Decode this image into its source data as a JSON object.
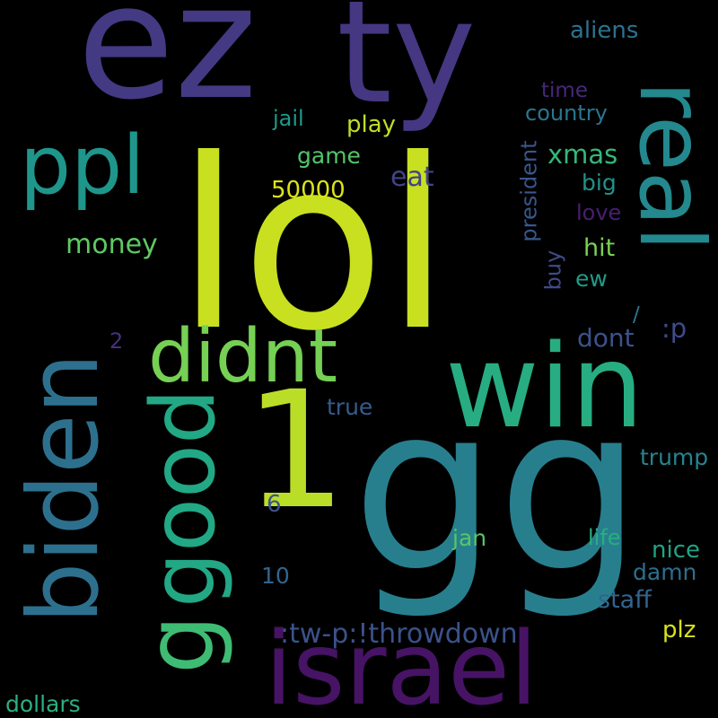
{
  "background": "#000000",
  "words": [
    {
      "text": "lol",
      "color": "#c8e020"
    },
    {
      "text": "gg",
      "color": "#277f8e"
    },
    {
      "text": "ez",
      "color": "#443983"
    },
    {
      "text": "ty",
      "color": "#453781"
    },
    {
      "text": "1",
      "color": "#bade28"
    },
    {
      "text": "win",
      "color": "#27ad81"
    },
    {
      "text": "israel",
      "color": "#471365"
    },
    {
      "text": "biden",
      "color": "#2d708e"
    },
    {
      "text": "good",
      "color": "#22a884"
    },
    {
      "text": "real",
      "color": "#23898e"
    },
    {
      "text": "didnt",
      "color": "#75d054"
    },
    {
      "text": "ppl",
      "color": "#1f968b"
    },
    {
      "text": "g",
      "color": "#3fbc73"
    },
    {
      "text": ":tw-p:!throwdown",
      "color": "#3b528b"
    },
    {
      "text": "money",
      "color": "#5ec962"
    },
    {
      "text": "50000",
      "color": "#dde318"
    },
    {
      "text": "xmas",
      "color": "#35b779"
    },
    {
      "text": "eat",
      "color": "#414487"
    },
    {
      "text": "play",
      "color": "#bddf26"
    },
    {
      "text": "game",
      "color": "#52c569"
    },
    {
      "text": "jail",
      "color": "#1f9a8a"
    },
    {
      "text": "aliens",
      "color": "#2c728e"
    },
    {
      "text": "time",
      "color": "#482878"
    },
    {
      "text": "country",
      "color": "#2a768e"
    },
    {
      "text": "president",
      "color": "#39568c"
    },
    {
      "text": "big",
      "color": "#21918c"
    },
    {
      "text": "love",
      "color": "#481f70"
    },
    {
      "text": "hit",
      "color": "#7ad151"
    },
    {
      "text": "buy",
      "color": "#3e4a89"
    },
    {
      "text": "ew",
      "color": "#1e9c89"
    },
    {
      "text": "dont",
      "color": "#3b528b"
    },
    {
      "text": ":p",
      "color": "#3e4c8a"
    },
    {
      "text": "/",
      "color": "#2a788e"
    },
    {
      "text": "2",
      "color": "#46307e"
    },
    {
      "text": "true",
      "color": "#365c8d"
    },
    {
      "text": "trump",
      "color": "#25848e"
    },
    {
      "text": "6",
      "color": "#3a548c"
    },
    {
      "text": "jan",
      "color": "#56c667"
    },
    {
      "text": "life",
      "color": "#28ae80"
    },
    {
      "text": "nice",
      "color": "#20a386"
    },
    {
      "text": "10",
      "color": "#32658e"
    },
    {
      "text": "damn",
      "color": "#2e6e8e"
    },
    {
      "text": "staff",
      "color": "#32648e"
    },
    {
      "text": "plz",
      "color": "#d8e219"
    },
    {
      "text": "dollars",
      "color": "#2ab07f"
    }
  ]
}
